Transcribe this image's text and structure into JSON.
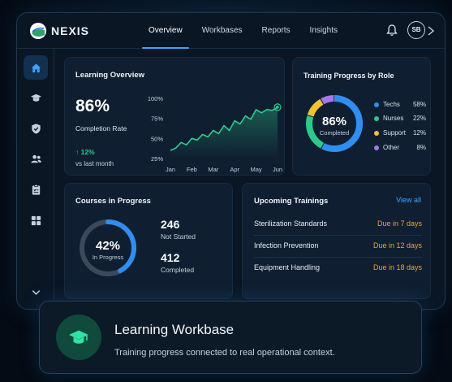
{
  "app": {
    "brand": "NEXIS",
    "avatar_initials": "SB"
  },
  "nav": {
    "tabs": [
      {
        "label": "Overview",
        "active": true
      },
      {
        "label": "Workbases",
        "active": false
      },
      {
        "label": "Reports",
        "active": false
      },
      {
        "label": "Insights",
        "active": false
      }
    ]
  },
  "sidebar": {
    "items": [
      {
        "icon": "home-icon",
        "active": true
      },
      {
        "icon": "graduation-cap-icon",
        "active": false
      },
      {
        "icon": "shield-check-icon",
        "active": false
      },
      {
        "icon": "users-icon",
        "active": false
      },
      {
        "icon": "clipboard-icon",
        "active": false
      },
      {
        "icon": "grid-icon",
        "active": false
      },
      {
        "icon": "chevron-down-icon",
        "active": false
      }
    ]
  },
  "learning_overview": {
    "title": "Learning Overview",
    "completion_value": "86%",
    "completion_label": "Completion Rate",
    "delta": "12%",
    "delta_label": "vs last month"
  },
  "training_progress": {
    "title": "Training Progress by Role",
    "center_value": "86%",
    "center_label": "Completed",
    "roles": [
      {
        "name": "Techs",
        "pct": "58%",
        "value": 58,
        "color": "#2f8ef0"
      },
      {
        "name": "Nurses",
        "pct": "22%",
        "value": 22,
        "color": "#2cc98a"
      },
      {
        "name": "Support",
        "pct": "12%",
        "value": 12,
        "color": "#f2c230"
      },
      {
        "name": "Other",
        "pct": "8%",
        "value": 8,
        "color": "#a777e8"
      }
    ]
  },
  "courses": {
    "title": "Courses in Progress",
    "ring_value": "42%",
    "ring_fraction": 0.42,
    "ring_label": "In Progress",
    "not_started_value": "246",
    "not_started_label": "Not Started",
    "completed_value": "412",
    "completed_label": "Completed"
  },
  "upcoming": {
    "title": "Upcoming Trainings",
    "view_all": "View all",
    "items": [
      {
        "name": "Sterilization Standards",
        "due": "Due in 7 days"
      },
      {
        "name": "Infection Prevention",
        "due": "Due in 12 days"
      },
      {
        "name": "Equipment Handling",
        "due": "Due in 18 days"
      }
    ]
  },
  "bottom_card": {
    "title": "Learning Workbase",
    "subtitle": "Training progress connected to real operational context."
  },
  "colors": {
    "accent": "#3aa4ff",
    "green": "#2ecc8a",
    "orange": "#f0a038"
  },
  "chart_data": {
    "type": "line",
    "title": "",
    "categories": [
      "Jan",
      "Feb",
      "Mar",
      "Apr",
      "May",
      "Jun"
    ],
    "yticks": [
      "100%",
      "75%",
      "50%",
      "25%"
    ],
    "ylim": [
      25,
      100
    ],
    "x": [
      0,
      0.25,
      0.5,
      0.75,
      1,
      1.25,
      1.5,
      1.75,
      2,
      2.25,
      2.5,
      2.75,
      3,
      3.25,
      3.5,
      3.75,
      4,
      4.25,
      4.5,
      4.75,
      5
    ],
    "values": [
      35,
      38,
      45,
      42,
      50,
      48,
      55,
      52,
      60,
      56,
      66,
      60,
      72,
      68,
      78,
      74,
      86,
      82,
      86,
      85,
      89
    ],
    "grid": false,
    "area_fill": true
  }
}
